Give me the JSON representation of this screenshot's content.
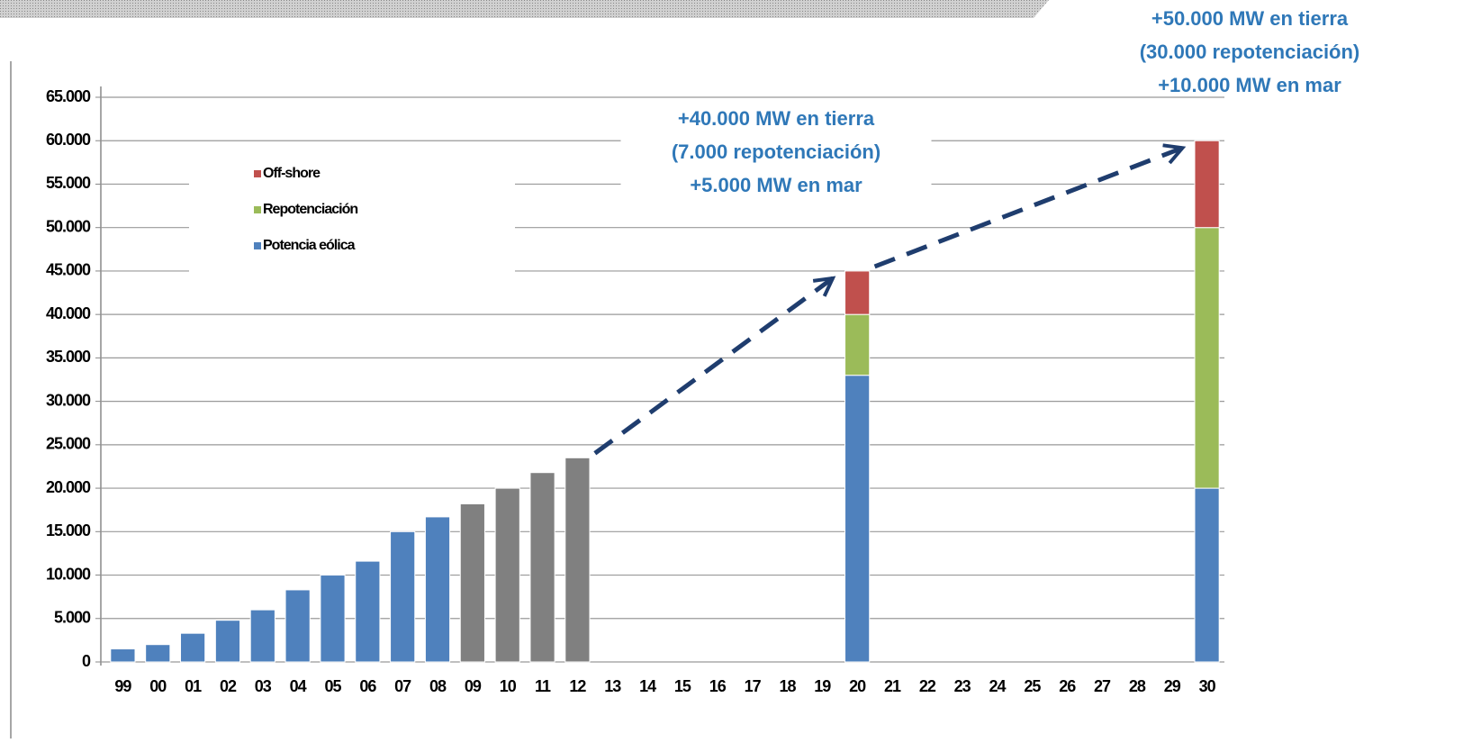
{
  "chart_data": {
    "type": "stacked_bar",
    "categories": [
      "99",
      "00",
      "01",
      "02",
      "03",
      "04",
      "05",
      "06",
      "07",
      "08",
      "09",
      "10",
      "11",
      "12",
      "13",
      "14",
      "15",
      "16",
      "17",
      "18",
      "19",
      "20",
      "21",
      "22",
      "23",
      "24",
      "25",
      "26",
      "27",
      "28",
      "29",
      "30"
    ],
    "series": [
      {
        "name": "Potencia eólica",
        "color": "#4f81bd",
        "colors": [
          "#4f81bd",
          "#4f81bd",
          "#4f81bd",
          "#4f81bd",
          "#4f81bd",
          "#4f81bd",
          "#4f81bd",
          "#4f81bd",
          "#4f81bd",
          "#4f81bd",
          "#808080",
          "#808080",
          "#808080",
          "#808080",
          "#4f81bd",
          "#4f81bd",
          "#4f81bd",
          "#4f81bd",
          "#4f81bd",
          "#4f81bd",
          "#4f81bd",
          "#4f81bd",
          "#4f81bd",
          "#4f81bd",
          "#4f81bd",
          "#4f81bd",
          "#4f81bd",
          "#4f81bd",
          "#4f81bd",
          "#4f81bd",
          "#4f81bd",
          "#4f81bd"
        ],
        "values": [
          1500,
          2000,
          3300,
          4800,
          6000,
          8300,
          10000,
          11600,
          15000,
          16700,
          18200,
          20000,
          21800,
          23500,
          null,
          null,
          null,
          null,
          null,
          null,
          null,
          33000,
          null,
          null,
          null,
          null,
          null,
          null,
          null,
          null,
          null,
          20000
        ]
      },
      {
        "name": "Repotenciación",
        "color": "#9bbb59",
        "values": [
          null,
          null,
          null,
          null,
          null,
          null,
          null,
          null,
          null,
          null,
          null,
          null,
          null,
          null,
          null,
          null,
          null,
          null,
          null,
          null,
          null,
          7000,
          null,
          null,
          null,
          null,
          null,
          null,
          null,
          null,
          null,
          30000
        ]
      },
      {
        "name": "Off-shore",
        "color": "#c0504d",
        "values": [
          null,
          null,
          null,
          null,
          null,
          null,
          null,
          null,
          null,
          null,
          null,
          null,
          null,
          null,
          null,
          null,
          null,
          null,
          null,
          null,
          null,
          5000,
          null,
          null,
          null,
          null,
          null,
          null,
          null,
          null,
          null,
          10000
        ]
      }
    ],
    "ylim": [
      0,
      65000
    ],
    "yticks": [
      0,
      {
        "value": 5000,
        "label": "5.000"
      },
      {
        "value": 10000,
        "label": "10.000"
      },
      {
        "value": 15000,
        "label": "15.000"
      },
      {
        "value": 20000,
        "label": "20.000"
      },
      {
        "value": 25000,
        "label": "25.000"
      },
      {
        "value": 30000,
        "label": "30.000"
      },
      {
        "value": 35000,
        "label": "35.000"
      },
      {
        "value": 40000,
        "label": "40.000"
      },
      {
        "value": 45000,
        "label": "45.000"
      },
      {
        "value": 50000,
        "label": "50.000"
      },
      {
        "value": 55000,
        "label": "55.000"
      },
      {
        "value": 60000,
        "label": "60.000"
      },
      {
        "value": 65000,
        "label": "65.000"
      }
    ],
    "grid": true,
    "legend": "upper left",
    "annotations": [
      [
        "+40.000 MW en tierra",
        "(7.000 repotenciación)",
        "+5.000  MW en mar"
      ],
      [
        "+50.000 MW en tierra",
        "(30.000 repotenciación)",
        "+10.000  MW en mar"
      ]
    ]
  }
}
